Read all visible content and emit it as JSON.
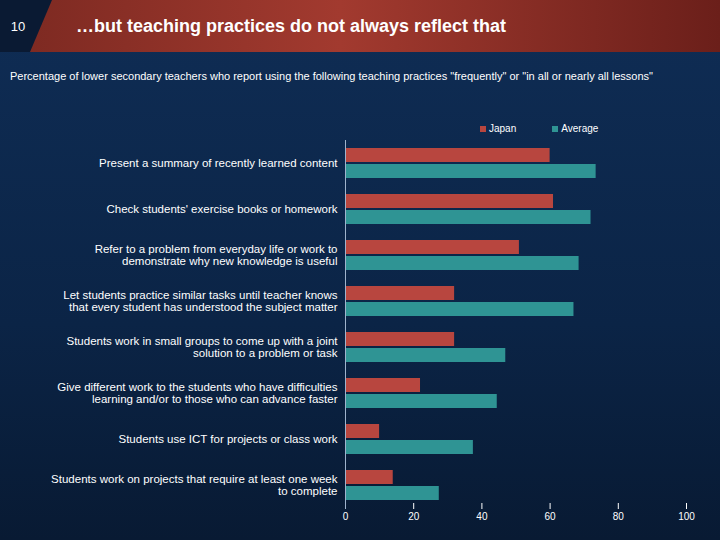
{
  "chart_data": {
    "type": "bar",
    "orientation": "horizontal",
    "slide_number": "10",
    "title": "…but teaching practices do not always reflect that",
    "subtitle": "Percentage of lower secondary teachers who report using the following teaching practices \"frequently\" or \"in all or nearly all lessons\"",
    "categories": [
      "Present a summary of recently learned content",
      "Check students' exercise books or homework",
      "Refer to a problem from everyday life or work to demonstrate why new knowledge is useful",
      "Let students practice similar tasks until teacher knows that every student has understood the subject matter",
      "Students work in small groups to come up with a joint solution to a problem or task",
      "Give different work to the students who have difficulties learning and/or to those who can advance faster",
      "Students use ICT for projects or class work",
      "Students work on projects that require at least one week to complete"
    ],
    "series": [
      {
        "name": "Japan",
        "color": "#b8463f",
        "values": [
          60,
          61,
          51,
          32,
          32,
          22,
          10,
          14
        ]
      },
      {
        "name": "Average",
        "color": "#2f9494",
        "values": [
          73.5,
          72,
          68.5,
          67,
          47,
          44.5,
          37.5,
          27.5
        ]
      }
    ],
    "xlim": [
      0,
      100
    ],
    "xticks": [
      0,
      20,
      40,
      60,
      80,
      100
    ],
    "legend": "top",
    "grid": false
  }
}
